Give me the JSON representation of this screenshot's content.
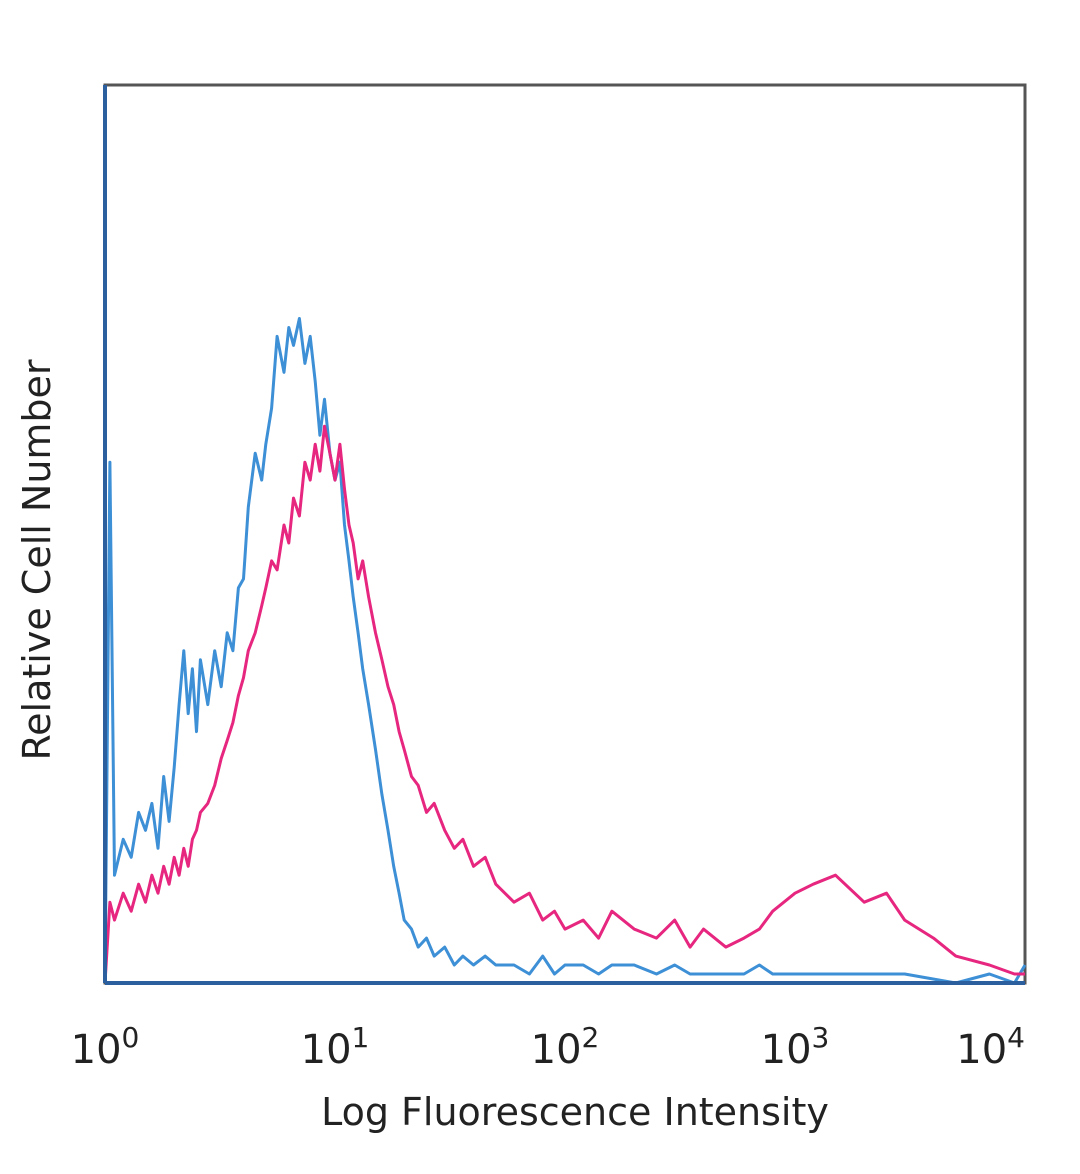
{
  "chart_data": {
    "type": "line",
    "title": "",
    "xlabel": "Log Fluorescence Intensity",
    "ylabel": "Relative Cell Number",
    "x_scale": "log",
    "xlim": [
      1,
      10000
    ],
    "ylim": [
      0,
      100
    ],
    "grid": false,
    "legend": "none",
    "x_ticks": [
      {
        "value": 1,
        "base": "10",
        "exp": "0"
      },
      {
        "value": 10,
        "base": "10",
        "exp": "1"
      },
      {
        "value": 100,
        "base": "10",
        "exp": "2"
      },
      {
        "value": 1000,
        "base": "10",
        "exp": "3"
      },
      {
        "value": 10000,
        "base": "10",
        "exp": "4"
      }
    ],
    "series": [
      {
        "color": "#3d8fd6",
        "x": [
          1.0,
          1.05,
          1.1,
          1.2,
          1.3,
          1.4,
          1.5,
          1.6,
          1.7,
          1.8,
          1.9,
          2.0,
          2.1,
          2.2,
          2.3,
          2.4,
          2.5,
          2.6,
          2.8,
          3.0,
          3.2,
          3.4,
          3.6,
          3.8,
          4.0,
          4.2,
          4.5,
          4.8,
          5.0,
          5.3,
          5.6,
          6.0,
          6.3,
          6.6,
          7.0,
          7.4,
          7.8,
          8.2,
          8.6,
          9.0,
          9.5,
          10.0,
          10.5,
          11.0,
          11.5,
          12.0,
          12.6,
          13.2,
          14.0,
          15.0,
          16.0,
          17.0,
          18.0,
          19.0,
          20.0,
          21.5,
          23.0,
          25.0,
          27.0,
          30.0,
          33.0,
          36.0,
          40.0,
          45.0,
          50.0,
          60.0,
          70.0,
          80.0,
          90.0,
          100.0,
          120.0,
          140.0,
          160.0,
          200.0,
          250.0,
          300.0,
          350.0,
          400.0,
          500.0,
          600.0,
          700.0,
          800.0,
          1000.0,
          1500.0,
          2000.0,
          3000.0,
          5000.0,
          7000.0,
          9000.0,
          10000.0
        ],
        "y": [
          0,
          58,
          12,
          16,
          14,
          19,
          17,
          20,
          15,
          23,
          18,
          24,
          31,
          37,
          30,
          35,
          28,
          36,
          31,
          37,
          33,
          39,
          37,
          44,
          45,
          53,
          59,
          56,
          60,
          64,
          72,
          68,
          73,
          71,
          74,
          69,
          72,
          67,
          61,
          65,
          59,
          56,
          58,
          51,
          47,
          43,
          39,
          35,
          31,
          26,
          21,
          17,
          13,
          10,
          7,
          6,
          4,
          5,
          3,
          4,
          2,
          3,
          2,
          3,
          2,
          2,
          1,
          3,
          1,
          2,
          2,
          1,
          2,
          2,
          1,
          2,
          1,
          1,
          1,
          1,
          2,
          1,
          1,
          1,
          1,
          1,
          0,
          1,
          0,
          2
        ]
      },
      {
        "color": "#e6267f",
        "x": [
          1.0,
          1.05,
          1.1,
          1.2,
          1.3,
          1.4,
          1.5,
          1.6,
          1.7,
          1.8,
          1.9,
          2.0,
          2.1,
          2.2,
          2.3,
          2.4,
          2.5,
          2.6,
          2.8,
          3.0,
          3.2,
          3.4,
          3.6,
          3.8,
          4.0,
          4.2,
          4.5,
          4.8,
          5.0,
          5.3,
          5.6,
          6.0,
          6.3,
          6.6,
          7.0,
          7.4,
          7.8,
          8.2,
          8.6,
          9.0,
          9.5,
          10.0,
          10.5,
          11.0,
          11.5,
          12.0,
          12.6,
          13.2,
          14.0,
          15.0,
          16.0,
          17.0,
          18.0,
          19.0,
          20.0,
          21.5,
          23.0,
          25.0,
          27.0,
          30.0,
          33.0,
          36.0,
          40.0,
          45.0,
          50.0,
          60.0,
          70.0,
          80.0,
          90.0,
          100.0,
          120.0,
          140.0,
          160.0,
          200.0,
          250.0,
          300.0,
          350.0,
          400.0,
          500.0,
          600.0,
          700.0,
          800.0,
          1000.0,
          1200.0,
          1500.0,
          2000.0,
          2500.0,
          3000.0,
          4000.0,
          5000.0,
          7000.0,
          9000.0,
          10000.0
        ],
        "y": [
          0,
          9,
          7,
          10,
          8,
          11,
          9,
          12,
          10,
          13,
          11,
          14,
          12,
          15,
          13,
          16,
          17,
          19,
          20,
          22,
          25,
          27,
          29,
          32,
          34,
          37,
          39,
          42,
          44,
          47,
          46,
          51,
          49,
          54,
          52,
          58,
          56,
          60,
          57,
          62,
          59,
          56,
          60,
          55,
          51,
          49,
          45,
          47,
          43,
          39,
          36,
          33,
          31,
          28,
          26,
          23,
          22,
          19,
          20,
          17,
          15,
          16,
          13,
          14,
          11,
          9,
          10,
          7,
          8,
          6,
          7,
          5,
          8,
          6,
          5,
          7,
          4,
          6,
          4,
          5,
          6,
          8,
          10,
          11,
          12,
          9,
          10,
          7,
          5,
          3,
          2,
          1,
          1
        ]
      }
    ]
  }
}
